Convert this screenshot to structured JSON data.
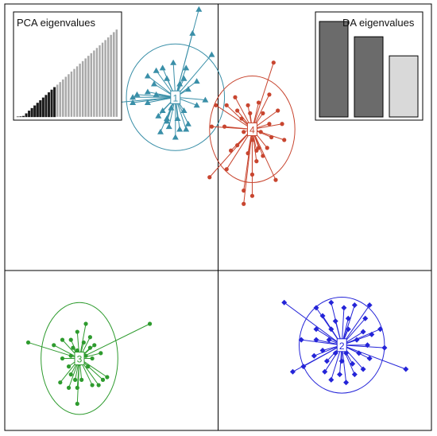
{
  "chart_data": {
    "type": "scatter",
    "title": "",
    "xlabel": "",
    "ylabel": "",
    "xlim": [
      -10,
      10
    ],
    "ylim": [
      -9,
      7
    ],
    "grid": true,
    "grid_lines": {
      "x": [
        0
      ],
      "y": [
        -3
      ]
    },
    "clusters": [
      {
        "label": "1",
        "color": "#3a8fa8",
        "marker": "triangle",
        "center": [
          -2.0,
          3.5
        ],
        "ellipse_radius": [
          2.3,
          2.0
        ],
        "points": [
          [
            -0.9,
            6.8
          ],
          [
            -0.3,
            5.1
          ],
          [
            -1.2,
            5.9
          ],
          [
            -1.6,
            4.2
          ],
          [
            -1.0,
            4.1
          ],
          [
            -1.5,
            4.6
          ],
          [
            -2.1,
            4.8
          ],
          [
            -2.6,
            4.6
          ],
          [
            -2.9,
            4.5
          ],
          [
            -2.4,
            4.2
          ],
          [
            -1.8,
            4.0
          ],
          [
            -1.4,
            3.8
          ],
          [
            -3.3,
            4.3
          ],
          [
            -3.0,
            4.0
          ],
          [
            -3.8,
            3.6
          ],
          [
            -4.0,
            3.5
          ],
          [
            -4.8,
            3.3
          ],
          [
            -4.0,
            3.3
          ],
          [
            -3.3,
            3.3
          ],
          [
            -2.6,
            3.0
          ],
          [
            -2.2,
            3.1
          ],
          [
            -1.6,
            3.0
          ],
          [
            -1.0,
            3.2
          ],
          [
            -0.6,
            3.4
          ],
          [
            -2.8,
            2.8
          ],
          [
            -2.4,
            2.6
          ],
          [
            -1.9,
            2.7
          ],
          [
            -2.3,
            2.4
          ],
          [
            -1.8,
            2.3
          ],
          [
            -2.7,
            2.2
          ],
          [
            -2.0,
            2.0
          ],
          [
            -1.4,
            2.5
          ],
          [
            -1.5,
            2.3
          ],
          [
            -2.4,
            2.7
          ],
          [
            -3.3,
            3.7
          ],
          [
            -2.9,
            3.6
          ]
        ]
      },
      {
        "label": "4",
        "color": "#c8452f",
        "marker": "circle",
        "center": [
          1.6,
          2.3
        ],
        "ellipse_radius": [
          2.0,
          2.0
        ],
        "points": [
          [
            2.6,
            4.8
          ],
          [
            2.4,
            3.6
          ],
          [
            1.9,
            3.3
          ],
          [
            1.4,
            3.2
          ],
          [
            0.8,
            3.5
          ],
          [
            0.4,
            3.2
          ],
          [
            -0.1,
            3.2
          ],
          [
            0.9,
            3.0
          ],
          [
            1.5,
            2.9
          ],
          [
            2.1,
            2.9
          ],
          [
            2.8,
            3.0
          ],
          [
            3.0,
            2.5
          ],
          [
            2.4,
            2.5
          ],
          [
            1.1,
            2.7
          ],
          [
            0.3,
            2.4
          ],
          [
            -0.3,
            2.4
          ],
          [
            1.2,
            2.2
          ],
          [
            2.0,
            2.2
          ],
          [
            2.5,
            2.0
          ],
          [
            3.1,
            1.9
          ],
          [
            1.6,
            1.9
          ],
          [
            1.4,
            1.4
          ],
          [
            1.8,
            1.5
          ],
          [
            1.9,
            1.6
          ],
          [
            0.9,
            1.7
          ],
          [
            0.6,
            1.5
          ],
          [
            2.1,
            1.3
          ],
          [
            1.8,
            1.1
          ],
          [
            1.6,
            0.6
          ],
          [
            2.7,
            0.4
          ],
          [
            0.4,
            0.8
          ],
          [
            -0.4,
            0.5
          ],
          [
            1.2,
            0.0
          ],
          [
            1.6,
            -0.2
          ],
          [
            1.2,
            -0.5
          ],
          [
            2.3,
            1.6
          ]
        ]
      },
      {
        "label": "3",
        "color": "#2e9b2e",
        "marker": "circle",
        "center": [
          -6.5,
          -6.3
        ],
        "ellipse_radius": [
          1.8,
          2.1
        ],
        "points": [
          [
            -3.2,
            -5.0
          ],
          [
            -6.2,
            -5.0
          ],
          [
            -6.6,
            -5.3
          ],
          [
            -6.9,
            -5.6
          ],
          [
            -6.3,
            -5.7
          ],
          [
            -6.0,
            -5.5
          ],
          [
            -7.3,
            -5.6
          ],
          [
            -8.9,
            -5.7
          ],
          [
            -7.7,
            -5.8
          ],
          [
            -6.8,
            -5.9
          ],
          [
            -6.0,
            -5.9
          ],
          [
            -5.8,
            -5.8
          ],
          [
            -6.2,
            -6.2
          ],
          [
            -6.6,
            -6.0
          ],
          [
            -6.9,
            -6.2
          ],
          [
            -7.3,
            -6.3
          ],
          [
            -6.5,
            -6.5
          ],
          [
            -5.9,
            -6.3
          ],
          [
            -5.5,
            -6.1
          ],
          [
            -6.1,
            -6.6
          ],
          [
            -6.9,
            -6.9
          ],
          [
            -7.0,
            -6.6
          ],
          [
            -6.7,
            -7.1
          ],
          [
            -5.4,
            -7.1
          ],
          [
            -5.9,
            -7.3
          ],
          [
            -7.0,
            -7.4
          ],
          [
            -6.4,
            -7.1
          ],
          [
            -5.6,
            -7.3
          ],
          [
            -6.6,
            -7.4
          ],
          [
            -5.2,
            -7.0
          ],
          [
            -7.4,
            -7.2
          ],
          [
            -6.6,
            -8.0
          ]
        ]
      },
      {
        "label": "2",
        "color": "#2424d8",
        "marker": "diamond",
        "center": [
          5.8,
          -5.8
        ],
        "ellipse_radius": [
          2.0,
          1.8
        ],
        "points": [
          [
            3.1,
            -4.2
          ],
          [
            4.6,
            -4.4
          ],
          [
            5.3,
            -4.2
          ],
          [
            5.9,
            -4.4
          ],
          [
            6.4,
            -4.3
          ],
          [
            7.1,
            -4.3
          ],
          [
            4.9,
            -4.7
          ],
          [
            5.5,
            -4.9
          ],
          [
            6.1,
            -4.8
          ],
          [
            6.9,
            -4.8
          ],
          [
            7.6,
            -5.2
          ],
          [
            4.6,
            -5.2
          ],
          [
            5.3,
            -5.2
          ],
          [
            6.1,
            -5.2
          ],
          [
            6.8,
            -5.3
          ],
          [
            7.2,
            -5.4
          ],
          [
            3.9,
            -5.6
          ],
          [
            4.6,
            -5.6
          ],
          [
            5.2,
            -5.6
          ],
          [
            6.5,
            -5.6
          ],
          [
            7.0,
            -5.8
          ],
          [
            7.8,
            -5.9
          ],
          [
            4.9,
            -6.0
          ],
          [
            5.5,
            -6.1
          ],
          [
            6.0,
            -6.1
          ],
          [
            6.6,
            -6.1
          ],
          [
            7.1,
            -6.3
          ],
          [
            4.5,
            -6.2
          ],
          [
            5.1,
            -6.4
          ],
          [
            5.8,
            -6.4
          ],
          [
            6.3,
            -6.5
          ],
          [
            6.8,
            -6.7
          ],
          [
            5.0,
            -6.8
          ],
          [
            5.7,
            -6.9
          ],
          [
            6.4,
            -6.9
          ],
          [
            5.3,
            -7.1
          ],
          [
            6.0,
            -7.2
          ],
          [
            3.5,
            -6.8
          ],
          [
            4.0,
            -6.6
          ],
          [
            8.8,
            -6.7
          ]
        ]
      }
    ],
    "insets": [
      {
        "title": "PCA eigenvalues",
        "type": "bar",
        "retained_count": 22,
        "values": [
          40,
          38.8,
          37.6,
          36.4,
          35.2,
          34,
          32.8,
          31.6,
          30.4,
          29.2,
          28,
          26.8,
          25.6,
          24.4,
          23.2,
          22,
          20.8,
          19.6,
          18.4,
          17.2,
          16,
          14.8,
          13.6,
          12.4,
          11.2,
          10,
          8.8,
          7.6,
          6.4,
          5.2,
          4,
          2.8,
          1.6,
          0.4,
          0.2,
          0.1
        ],
        "values_order": "descending"
      },
      {
        "title": "DA eigenvalues",
        "type": "bar",
        "retained_count": 2,
        "values": [
          100,
          84,
          64
        ]
      }
    ]
  }
}
